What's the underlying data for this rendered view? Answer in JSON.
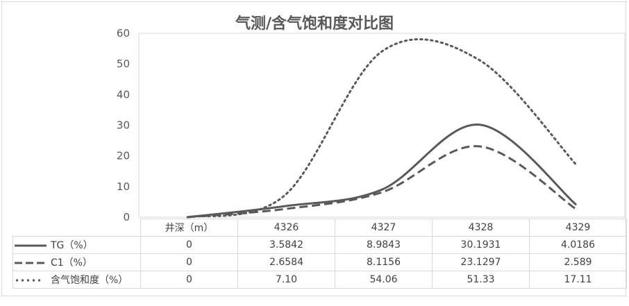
{
  "chart_data": {
    "type": "line",
    "title": "气测/含气饱和度对比图",
    "categories": [
      "井深（m）",
      "4326",
      "4327",
      "4328",
      "4329"
    ],
    "ylim": [
      0,
      60
    ],
    "yticks": [
      "0",
      "10",
      "20",
      "30",
      "40",
      "50",
      "60"
    ],
    "grid": false,
    "legend": "data-table",
    "smooth": true,
    "series": [
      {
        "name": "TG（%）",
        "style": "solid",
        "labels": [
          "0",
          "3.5842",
          "8.9843",
          "30.1931",
          "4.0186"
        ],
        "values": [
          0,
          3.5842,
          8.9843,
          30.1931,
          4.0186
        ]
      },
      {
        "name": "C1（%）",
        "style": "dashed",
        "labels": [
          "0",
          "2.6584",
          "8.1156",
          "23.1297",
          "2.589"
        ],
        "values": [
          0,
          2.6584,
          8.1156,
          23.1297,
          2.589
        ]
      },
      {
        "name": "含气饱和度（%）",
        "style": "dotted",
        "labels": [
          "0",
          "7.10",
          "54.06",
          "51.33",
          "17.11"
        ],
        "values": [
          0,
          7.1,
          54.06,
          51.33,
          17.11
        ]
      }
    ],
    "colors": {
      "line": "#595959",
      "axis": "#d9d9d9",
      "text": "#595959"
    }
  }
}
